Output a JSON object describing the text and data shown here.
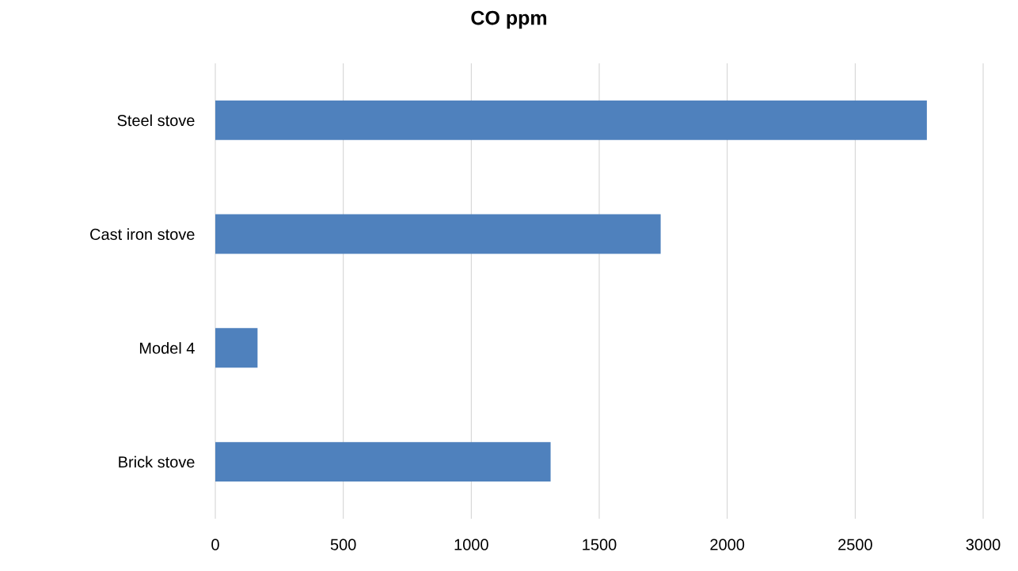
{
  "chart_data": {
    "type": "bar",
    "orientation": "horizontal",
    "title": "CO ppm",
    "categories": [
      "Steel stove",
      "Cast iron stove",
      "Model 4",
      "Brick stove"
    ],
    "values": [
      2780,
      1740,
      165,
      1310
    ],
    "color": "#4f81bd",
    "xlim": [
      0,
      3000
    ],
    "xticks": [
      0,
      500,
      1000,
      1500,
      2000,
      2500,
      3000
    ],
    "grid": "x"
  }
}
